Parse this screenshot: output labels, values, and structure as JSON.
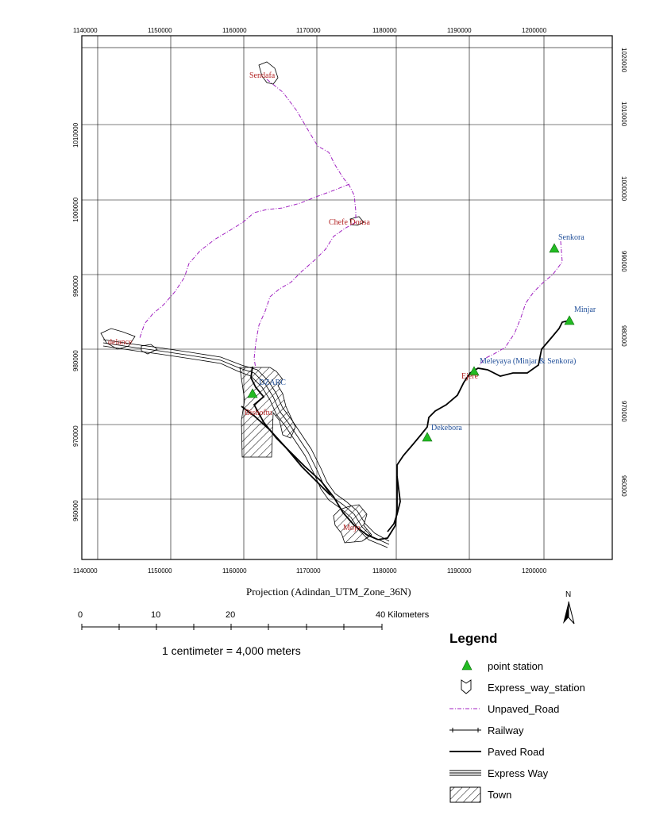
{
  "map": {
    "x_ticks": [
      "1140000",
      "1150000",
      "1160000",
      "1170000",
      "1180000",
      "1190000",
      "1200000"
    ],
    "y_ticks": [
      "1020000",
      "1010000",
      "1000000",
      "990000",
      "980000",
      "970000",
      "960000"
    ],
    "projection": "Projection (Adindan_UTM_Zone_36N)"
  },
  "places": {
    "sendafa": "Sendafa",
    "chefe_donsa": "Chefe Donsa",
    "adama_west": "delance",
    "dzarc": "DZARC",
    "bishoftu": "Bishoftu",
    "mojo": "Mojo",
    "senkora": "Senkora",
    "minjar": "Minjar",
    "meleyaya": "Meleyaya (Minjar & Senkora)",
    "ejere": "Ejere",
    "dekebora": "Dekebora"
  },
  "scale_bar": {
    "labels": [
      "0",
      "10",
      "20",
      "40 Kilometers"
    ],
    "ratio_text": "1 centimeter = 4,000 meters"
  },
  "north_arrow": {
    "label": "N",
    "icon": "north-arrow-icon"
  },
  "legend": {
    "title": "Legend",
    "items": [
      {
        "label": "point station",
        "icon": "green-triangle-icon"
      },
      {
        "label": "Express_way_station",
        "icon": "shield-outline-icon"
      },
      {
        "label": "Unpaved_Road",
        "icon": "dash-dot-line-icon"
      },
      {
        "label": "Railway",
        "icon": "railway-line-icon"
      },
      {
        "label": "Paved Road",
        "icon": "solid-line-icon"
      },
      {
        "label": "Express Way",
        "icon": "triple-line-icon"
      },
      {
        "label": "Town",
        "icon": "hatched-box-icon"
      }
    ]
  },
  "colors": {
    "unpaved": "#a020c0",
    "station": "#22bb22",
    "town_label": "#b22222",
    "station_label": "#1f4e99"
  }
}
